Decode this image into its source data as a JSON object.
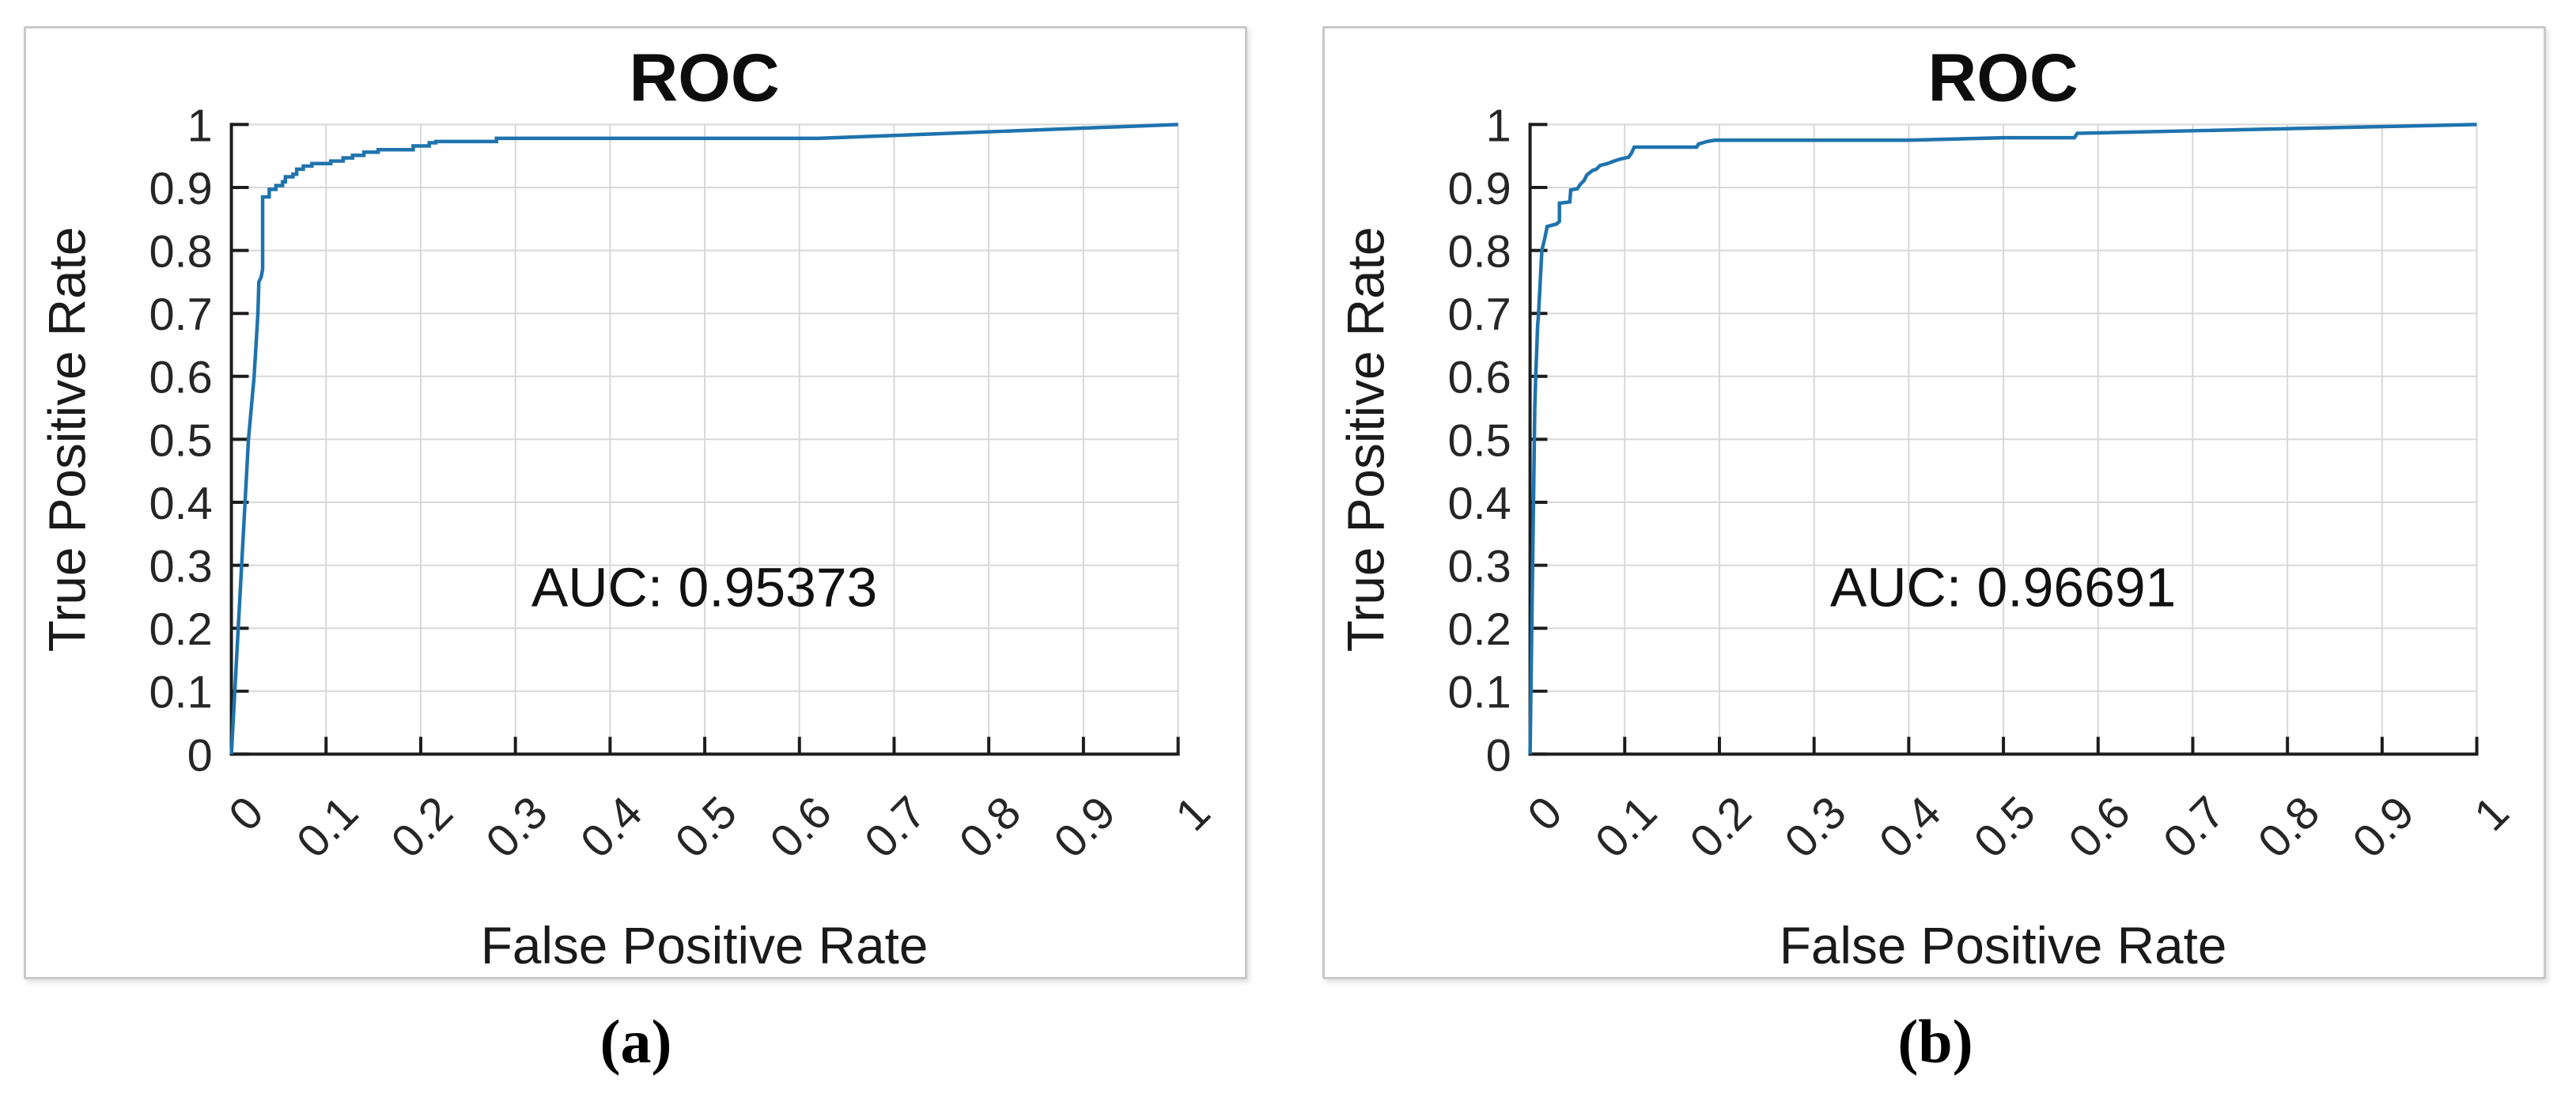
{
  "figure": {
    "captions": [
      "(a)",
      "(b)"
    ]
  },
  "style": {
    "curve_color": "#1e73ae",
    "axis_color": "#1c1c1c",
    "grid_color": "#d8d8d8",
    "panel_border_color": "#c9c9c9"
  },
  "chart_data": [
    {
      "type": "line",
      "title": "ROC",
      "xlabel": "False Positive Rate",
      "ylabel": "True Positive Rate",
      "annotation": "AUC: 0.95373",
      "auc": 0.95373,
      "caption": "(a)",
      "xlim": [
        0,
        1
      ],
      "ylim": [
        0,
        1
      ],
      "grid": true,
      "legend": "none",
      "x_tick_labels": [
        "0",
        "0.1",
        "0.2",
        "0.3",
        "0.4",
        "0.5",
        "0.6",
        "0.7",
        "0.8",
        "0.9",
        "1"
      ],
      "y_tick_labels": [
        "0",
        "0.1",
        "0.2",
        "0.3",
        "0.4",
        "0.5",
        "0.6",
        "0.7",
        "0.8",
        "0.9",
        "1"
      ],
      "x_tick_rotation_deg": 45,
      "series": [
        {
          "name": "ROC curve",
          "points": [
            [
              0,
              0
            ],
            [
              0.018,
              0.5
            ],
            [
              0.024,
              0.6
            ],
            [
              0.028,
              0.7
            ],
            [
              0.029,
              0.75
            ],
            [
              0.0315,
              0.758
            ],
            [
              0.033,
              0.77
            ],
            [
              0.033,
              0.885
            ],
            [
              0.04,
              0.885
            ],
            [
              0.04,
              0.897
            ],
            [
              0.047,
              0.897
            ],
            [
              0.047,
              0.903
            ],
            [
              0.054,
              0.903
            ],
            [
              0.054,
              0.909
            ],
            [
              0.057,
              0.909
            ],
            [
              0.057,
              0.917
            ],
            [
              0.065,
              0.917
            ],
            [
              0.065,
              0.921
            ],
            [
              0.069,
              0.921
            ],
            [
              0.069,
              0.929
            ],
            [
              0.076,
              0.929
            ],
            [
              0.076,
              0.934
            ],
            [
              0.085,
              0.934
            ],
            [
              0.085,
              0.938
            ],
            [
              0.105,
              0.938
            ],
            [
              0.105,
              0.942
            ],
            [
              0.118,
              0.942
            ],
            [
              0.118,
              0.947
            ],
            [
              0.128,
              0.947
            ],
            [
              0.128,
              0.951
            ],
            [
              0.14,
              0.951
            ],
            [
              0.14,
              0.956
            ],
            [
              0.155,
              0.956
            ],
            [
              0.155,
              0.96
            ],
            [
              0.192,
              0.96
            ],
            [
              0.192,
              0.966
            ],
            [
              0.209,
              0.966
            ],
            [
              0.209,
              0.971
            ],
            [
              0.216,
              0.971
            ],
            [
              0.216,
              0.973
            ],
            [
              0.28,
              0.973
            ],
            [
              0.28,
              0.978
            ],
            [
              0.62,
              0.978
            ],
            [
              1,
              1
            ]
          ]
        }
      ]
    },
    {
      "type": "line",
      "title": "ROC",
      "xlabel": "False Positive Rate",
      "ylabel": "True Positive Rate",
      "annotation": "AUC: 0.96691",
      "auc": 0.96691,
      "caption": "(b)",
      "xlim": [
        0,
        1
      ],
      "ylim": [
        0,
        1
      ],
      "grid": true,
      "legend": "none",
      "x_tick_labels": [
        "0",
        "0.1",
        "0.2",
        "0.3",
        "0.4",
        "0.5",
        "0.6",
        "0.7",
        "0.8",
        "0.9",
        "1"
      ],
      "y_tick_labels": [
        "0",
        "0.1",
        "0.2",
        "0.3",
        "0.4",
        "0.5",
        "0.6",
        "0.7",
        "0.8",
        "0.9",
        "1"
      ],
      "x_tick_rotation_deg": 45,
      "series": [
        {
          "name": "ROC curve",
          "points": [
            [
              0,
              0
            ],
            [
              0.005,
              0.55
            ],
            [
              0.006,
              0.6
            ],
            [
              0.008,
              0.68
            ],
            [
              0.009,
              0.7
            ],
            [
              0.0125,
              0.8
            ],
            [
              0.016,
              0.822
            ],
            [
              0.018,
              0.838
            ],
            [
              0.028,
              0.842
            ],
            [
              0.031,
              0.846
            ],
            [
              0.031,
              0.875
            ],
            [
              0.042,
              0.877
            ],
            [
              0.043,
              0.896
            ],
            [
              0.05,
              0.898
            ],
            [
              0.053,
              0.905
            ],
            [
              0.057,
              0.911
            ],
            [
              0.06,
              0.92
            ],
            [
              0.066,
              0.927
            ],
            [
              0.07,
              0.929
            ],
            [
              0.074,
              0.935
            ],
            [
              0.082,
              0.938
            ],
            [
              0.087,
              0.941
            ],
            [
              0.095,
              0.945
            ],
            [
              0.104,
              0.948
            ],
            [
              0.107,
              0.954
            ],
            [
              0.11,
              0.964
            ],
            [
              0.176,
              0.964
            ],
            [
              0.178,
              0.969
            ],
            [
              0.187,
              0.973
            ],
            [
              0.195,
              0.975
            ],
            [
              0.4,
              0.975
            ],
            [
              0.5,
              0.979
            ],
            [
              0.575,
              0.979
            ],
            [
              0.578,
              0.986
            ],
            [
              1,
              1
            ]
          ]
        }
      ]
    }
  ]
}
